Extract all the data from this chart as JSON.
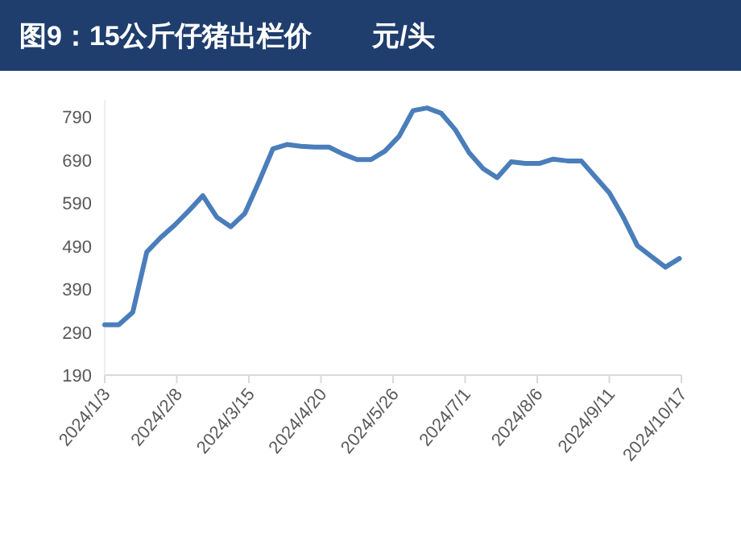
{
  "chart_data": {
    "type": "line",
    "title": "图9：15公斤仔猪出栏价        元/头",
    "x": [
      "2024-01-03",
      "2024-01-10",
      "2024-01-17",
      "2024-01-24",
      "2024-01-31",
      "2024-02-07",
      "2024-02-14",
      "2024-02-21",
      "2024-02-28",
      "2024-03-06",
      "2024-03-13",
      "2024-03-20",
      "2024-03-27",
      "2024-04-03",
      "2024-04-10",
      "2024-04-17",
      "2024-04-24",
      "2024-05-01",
      "2024-05-08",
      "2024-05-15",
      "2024-05-22",
      "2024-05-29",
      "2024-06-05",
      "2024-06-12",
      "2024-06-19",
      "2024-06-26",
      "2024-07-03",
      "2024-07-10",
      "2024-07-17",
      "2024-07-24",
      "2024-07-31",
      "2024-08-07",
      "2024-08-14",
      "2024-08-21",
      "2024-08-28",
      "2024-09-04",
      "2024-09-11",
      "2024-09-18",
      "2024-09-25",
      "2024-10-02",
      "2024-10-09",
      "2024-10-16"
    ],
    "series": [
      {
        "color": "#4a7ebb",
        "values": [
          307,
          307,
          336,
          476,
          510,
          539,
          572,
          607,
          557,
          535,
          566,
          639,
          716,
          726,
          722,
          720,
          720,
          704,
          691,
          691,
          711,
          745,
          805,
          811,
          799,
          761,
          707,
          670,
          649,
          686,
          682,
          682,
          692,
          688,
          688,
          651,
          614,
          557,
          491,
          466,
          441,
          461
        ]
      }
    ],
    "xlim": [
      "2024-01-03",
      "2024-10-17"
    ],
    "xticks": [
      {
        "value": "2024-01-03",
        "label": "2024/1/3"
      },
      {
        "value": "2024-02-08",
        "label": "2024/2/8"
      },
      {
        "value": "2024-03-15",
        "label": "2024/3/15"
      },
      {
        "value": "2024-04-20",
        "label": "2024/4/20"
      },
      {
        "value": "2024-05-26",
        "label": "2024/5/26"
      },
      {
        "value": "2024-07-01",
        "label": "2024/7/1"
      },
      {
        "value": "2024-08-06",
        "label": "2024/8/6"
      },
      {
        "value": "2024-09-11",
        "label": "2024/9/11"
      },
      {
        "value": "2024-10-17",
        "label": "2024/10/17"
      }
    ],
    "ylim": [
      190,
      830
    ],
    "yticks": [
      190,
      290,
      390,
      490,
      590,
      690,
      790
    ],
    "grid": false,
    "marker": "none",
    "line_style": "solid"
  }
}
